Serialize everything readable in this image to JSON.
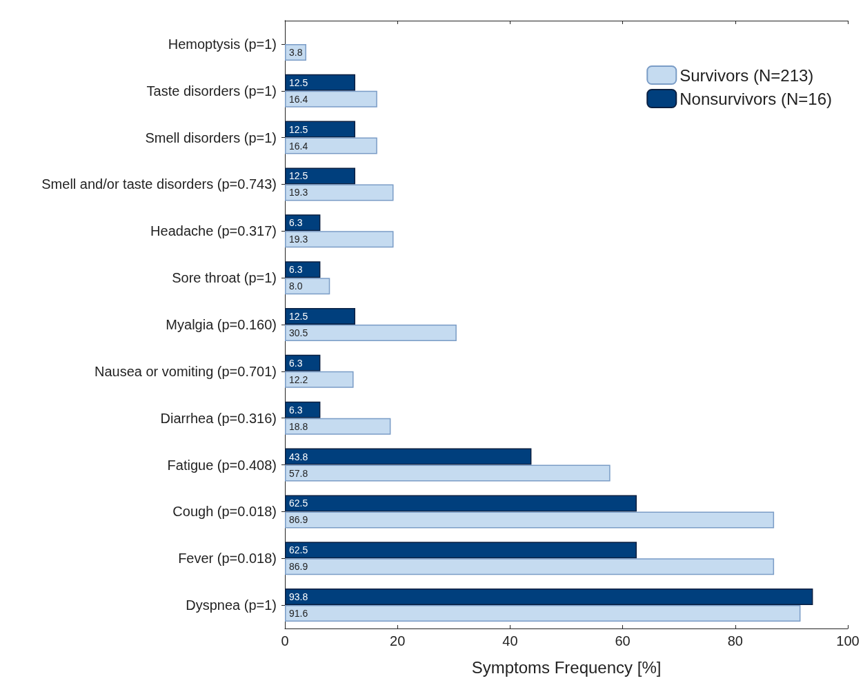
{
  "chart_data": {
    "type": "bar",
    "orientation": "horizontal",
    "xlabel": "Symptoms Frequency [%]",
    "categories": [
      "Hemoptysis (p=1)",
      "Taste disorders (p=1)",
      "Smell disorders (p=1)",
      "Smell and/or taste disorders (p=0.743)",
      "Headache (p=0.317)",
      "Sore throat (p=1)",
      "Myalgia (p=0.160)",
      "Nausea or vomiting (p=0.701)",
      "Diarrhea (p=0.316)",
      "Fatigue (p=0.408)",
      "Cough (p=0.018)",
      "Fever (p=0.018)",
      "Dyspnea (p=1)"
    ],
    "series": [
      {
        "name": "Survivors (N=213)",
        "color": "#c5dbf0",
        "values": [
          3.8,
          16.4,
          16.4,
          19.3,
          19.3,
          8.0,
          30.5,
          12.2,
          18.8,
          57.8,
          86.9,
          86.9,
          91.6
        ],
        "value_labels": [
          "3.8",
          "16.4",
          "16.4",
          "19.3",
          "19.3",
          "8.0",
          "30.5",
          "12.2",
          "18.8",
          "57.8",
          "86.9",
          "86.9",
          "91.6"
        ]
      },
      {
        "name": "Nonsurvivors (N=16)",
        "color": "#003f7d",
        "values": [
          null,
          12.5,
          12.5,
          12.5,
          6.3,
          6.3,
          12.5,
          6.3,
          6.3,
          43.8,
          62.5,
          62.5,
          93.8
        ],
        "value_labels": [
          null,
          "12.5",
          "12.5",
          "12.5",
          "6.3",
          "6.3",
          "12.5",
          "6.3",
          "6.3",
          "43.8",
          "62.5",
          "62.5",
          "93.8"
        ]
      }
    ],
    "xlim": [
      0,
      100
    ],
    "xticks": [
      0,
      20,
      40,
      60,
      80,
      100
    ],
    "legend": "top right",
    "grid": false
  }
}
